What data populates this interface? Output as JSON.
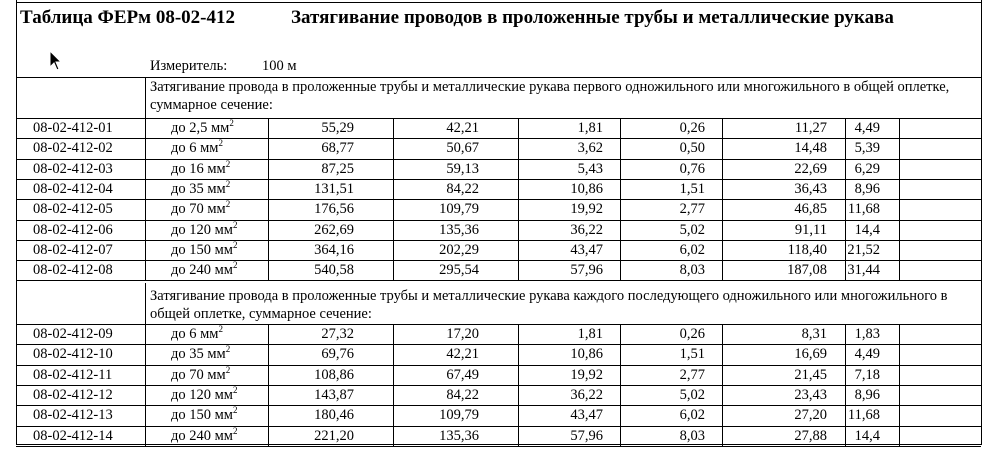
{
  "header": {
    "table_code": "Таблица ФЕРм 08-02-412",
    "table_name": "Затягивание проводов в проложенные трубы и металлические рукава",
    "unit_label": "Измеритель:",
    "unit_value": "100 м"
  },
  "sections": [
    {
      "description": "Затягивание провода в проложенные трубы и металлические рукава первого одножильного или многожильного в общей оплетке, суммарное сечение:",
      "rows": [
        {
          "code": "08-02-412-01",
          "section": "до 2,5 мм",
          "unit_sup": "2",
          "values": [
            "55,29",
            "42,21",
            "1,81",
            "0,26",
            "11,27",
            "4,49"
          ]
        },
        {
          "code": "08-02-412-02",
          "section": "до 6 мм",
          "unit_sup": "2",
          "values": [
            "68,77",
            "50,67",
            "3,62",
            "0,50",
            "14,48",
            "5,39"
          ]
        },
        {
          "code": "08-02-412-03",
          "section": "до 16 мм",
          "unit_sup": "2",
          "values": [
            "87,25",
            "59,13",
            "5,43",
            "0,76",
            "22,69",
            "6,29"
          ]
        },
        {
          "code": "08-02-412-04",
          "section": "до 35 мм",
          "unit_sup": "2",
          "values": [
            "131,51",
            "84,22",
            "10,86",
            "1,51",
            "36,43",
            "8,96"
          ]
        },
        {
          "code": "08-02-412-05",
          "section": "до 70 мм",
          "unit_sup": "2",
          "values": [
            "176,56",
            "109,79",
            "19,92",
            "2,77",
            "46,85",
            "11,68"
          ]
        },
        {
          "code": "08-02-412-06",
          "section": "до 120 мм",
          "unit_sup": "2",
          "values": [
            "262,69",
            "135,36",
            "36,22",
            "5,02",
            "91,11",
            "14,4"
          ]
        },
        {
          "code": "08-02-412-07",
          "section": "до 150 мм",
          "unit_sup": "2",
          "values": [
            "364,16",
            "202,29",
            "43,47",
            "6,02",
            "118,40",
            "21,52"
          ]
        },
        {
          "code": "08-02-412-08",
          "section": "до 240 мм",
          "unit_sup": "2",
          "values": [
            "540,58",
            "295,54",
            "57,96",
            "8,03",
            "187,08",
            "31,44"
          ]
        }
      ]
    },
    {
      "description": "Затягивание провода в проложенные трубы и металлические рукава каждого последующего одножильного или многожильного в общей оплетке, суммарное сечение:",
      "rows": [
        {
          "code": "08-02-412-09",
          "section": "до 6 мм",
          "unit_sup": "2",
          "values": [
            "27,32",
            "17,20",
            "1,81",
            "0,26",
            "8,31",
            "1,83"
          ]
        },
        {
          "code": "08-02-412-10",
          "section": "до 35 мм",
          "unit_sup": "2",
          "values": [
            "69,76",
            "42,21",
            "10,86",
            "1,51",
            "16,69",
            "4,49"
          ]
        },
        {
          "code": "08-02-412-11",
          "section": "до 70 мм",
          "unit_sup": "2",
          "values": [
            "108,86",
            "67,49",
            "19,92",
            "2,77",
            "21,45",
            "7,18"
          ]
        },
        {
          "code": "08-02-412-12",
          "section": "до 120 мм",
          "unit_sup": "2",
          "values": [
            "143,87",
            "84,22",
            "36,22",
            "5,02",
            "23,43",
            "8,96"
          ]
        },
        {
          "code": "08-02-412-13",
          "section": "до 150 мм",
          "unit_sup": "2",
          "values": [
            "180,46",
            "109,79",
            "43,47",
            "6,02",
            "27,20",
            "11,68"
          ]
        },
        {
          "code": "08-02-412-14",
          "section": "до 240 мм",
          "unit_sup": "2",
          "values": [
            "221,20",
            "135,36",
            "57,96",
            "8,03",
            "27,88",
            "14,4"
          ]
        }
      ]
    }
  ]
}
